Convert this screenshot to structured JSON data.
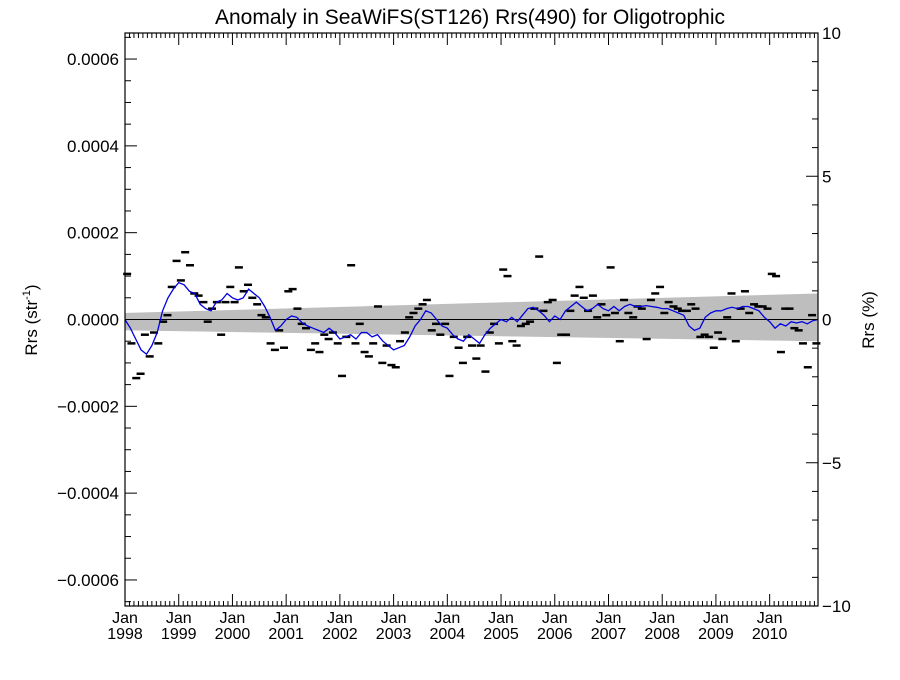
{
  "chart_data": {
    "type": "scatter",
    "title": "Anomaly in SeaWiFS(ST126) Rrs(490) for Oligotrophic",
    "ylabel_left": "Rrs (str",
    "ylabel_left_sup": "-1",
    "ylabel_left_close": ")",
    "ylabel_right": "Rrs (%)",
    "xlim": [
      1998.0,
      2010.9
    ],
    "ylim_left": [
      -0.00066,
      0.00066
    ],
    "ylim_right": [
      -10,
      10
    ],
    "yticks_left": [
      "−0.0006",
      "−0.0004",
      "−0.0002",
      "0.0000",
      "0.0002",
      "0.0004",
      "0.0006"
    ],
    "yticks_left_values": [
      -0.0006,
      -0.0004,
      -0.0002,
      0.0,
      0.0002,
      0.0004,
      0.0006
    ],
    "yticks_right": [
      "−10",
      "−5",
      "0",
      "5",
      "10"
    ],
    "yticks_right_values": [
      -10,
      -5,
      0,
      5,
      10
    ],
    "xticks": [
      {
        "year": 1998,
        "month": "Jan",
        "label": "1998"
      },
      {
        "year": 1999,
        "month": "Jan",
        "label": "1999"
      },
      {
        "year": 2000,
        "month": "Jan",
        "label": "2000"
      },
      {
        "year": 2001,
        "month": "Jan",
        "label": "2001"
      },
      {
        "year": 2002,
        "month": "Jan",
        "label": "2002"
      },
      {
        "year": 2003,
        "month": "Jan",
        "label": "2003"
      },
      {
        "year": 2004,
        "month": "Jan",
        "label": "2004"
      },
      {
        "year": 2005,
        "month": "Jan",
        "label": "2005"
      },
      {
        "year": 2006,
        "month": "Jan",
        "label": "2006"
      },
      {
        "year": 2007,
        "month": "Jan",
        "label": "2007"
      },
      {
        "year": 2008,
        "month": "Jan",
        "label": "2008"
      },
      {
        "year": 2009,
        "month": "Jan",
        "label": "2009"
      },
      {
        "year": 2010,
        "month": "Jan",
        "label": "2010"
      }
    ],
    "monthly_anomaly": {
      "marker": "dash",
      "color": "#000000",
      "x": [
        1998.04,
        1998.12,
        1998.21,
        1998.29,
        1998.37,
        1998.46,
        1998.54,
        1998.62,
        1998.71,
        1998.79,
        1998.87,
        1998.96,
        1999.04,
        1999.12,
        1999.21,
        1999.29,
        1999.37,
        1999.46,
        1999.54,
        1999.62,
        1999.71,
        1999.79,
        1999.87,
        1999.96,
        2000.04,
        2000.12,
        2000.21,
        2000.29,
        2000.37,
        2000.46,
        2000.54,
        2000.62,
        2000.71,
        2000.79,
        2000.87,
        2000.96,
        2001.04,
        2001.12,
        2001.21,
        2001.29,
        2001.37,
        2001.46,
        2001.54,
        2001.62,
        2001.71,
        2001.79,
        2001.87,
        2001.96,
        2002.04,
        2002.12,
        2002.21,
        2002.29,
        2002.37,
        2002.46,
        2002.54,
        2002.62,
        2002.71,
        2002.79,
        2002.87,
        2002.96,
        2003.04,
        2003.12,
        2003.21,
        2003.29,
        2003.37,
        2003.46,
        2003.54,
        2003.62,
        2003.71,
        2003.79,
        2003.87,
        2003.96,
        2004.04,
        2004.12,
        2004.21,
        2004.29,
        2004.37,
        2004.46,
        2004.54,
        2004.62,
        2004.71,
        2004.79,
        2004.87,
        2004.96,
        2005.04,
        2005.12,
        2005.21,
        2005.29,
        2005.37,
        2005.46,
        2005.54,
        2005.62,
        2005.71,
        2005.79,
        2005.87,
        2005.96,
        2006.04,
        2006.12,
        2006.21,
        2006.29,
        2006.37,
        2006.46,
        2006.54,
        2006.62,
        2006.71,
        2006.79,
        2006.87,
        2006.96,
        2007.04,
        2007.12,
        2007.21,
        2007.29,
        2007.37,
        2007.46,
        2007.54,
        2007.62,
        2007.71,
        2007.79,
        2007.87,
        2007.96,
        2008.04,
        2008.12,
        2008.21,
        2008.29,
        2008.37,
        2008.46,
        2008.54,
        2008.62,
        2008.71,
        2008.79,
        2008.87,
        2008.96,
        2009.04,
        2009.12,
        2009.21,
        2009.29,
        2009.37,
        2009.46,
        2009.54,
        2009.62,
        2009.71,
        2009.79,
        2009.87,
        2009.96,
        2010.04,
        2010.12,
        2010.21,
        2010.29,
        2010.37,
        2010.46,
        2010.54,
        2010.62,
        2010.71,
        2010.79,
        2010.87
      ],
      "y": [
        0.000105,
        -5.5e-05,
        -0.000135,
        -0.000125,
        -3.5e-05,
        -8.5e-05,
        -3e-05,
        -5.5e-05,
        -5e-06,
        1e-05,
        7.5e-05,
        0.000135,
        9e-05,
        0.000155,
        0.000125,
        6e-05,
        5.5e-05,
        4e-05,
        -5e-06,
        2.5e-05,
        4e-05,
        -3.5e-05,
        4e-05,
        7.5e-05,
        4e-05,
        0.00012,
        6.5e-05,
        8e-05,
        5e-05,
        3.5e-05,
        1e-05,
        5e-06,
        -5.5e-05,
        -7e-05,
        -2.5e-05,
        -6.5e-05,
        6.5e-05,
        7e-05,
        2.5e-05,
        -1e-05,
        -2e-05,
        -7e-05,
        -5.5e-05,
        -7.5e-05,
        -3.5e-05,
        -4.5e-05,
        -3e-05,
        -5.5e-05,
        -0.00013,
        -4e-05,
        0.000125,
        -5.5e-05,
        -1e-05,
        -7.5e-05,
        -8.5e-05,
        -5.5e-05,
        3e-05,
        -0.0001,
        -6e-05,
        -0.000105,
        -0.00011,
        -5e-05,
        -3e-05,
        5e-06,
        1.5e-05,
        2.5e-05,
        3.5e-05,
        4.5e-05,
        -2.5e-05,
        -1e-05,
        -3.5e-05,
        -1e-05,
        -0.00013,
        -4e-05,
        -6.5e-05,
        -0.0001,
        -4e-05,
        -6e-05,
        -9e-05,
        -6e-05,
        -0.00012,
        -3e-05,
        -1e-05,
        -5.5e-05,
        0.000115,
        0.0001,
        -5e-05,
        -6e-05,
        -1.5e-05,
        -1e-05,
        -5e-06,
        2.5e-05,
        0.000145,
        2e-05,
        4e-05,
        4.5e-05,
        -0.0001,
        -3.5e-05,
        -3.5e-05,
        2e-05,
        5.5e-05,
        7.5e-05,
        5e-05,
        2e-05,
        5.5e-05,
        5e-06,
        3.5e-05,
        1e-05,
        0.00012,
        1.5e-05,
        -5e-05,
        4.5e-05,
        1.5e-05,
        5e-06,
        3e-05,
        2.5e-05,
        -4.5e-05,
        4.5e-05,
        6e-05,
        7.5e-05,
        1.5e-05,
        4e-05,
        3e-05,
        2.5e-05,
        2e-05,
        2e-05,
        3.5e-05,
        2.5e-05,
        -4e-05,
        -3.5e-05,
        -4e-05,
        -6.5e-05,
        -3e-05,
        -4.5e-05,
        5e-06,
        6e-05,
        -5e-05,
        2.5e-05,
        6.5e-05,
        1.5e-05,
        3.5e-05,
        3e-05,
        3e-05,
        2.5e-05,
        0.000105,
        0.0001,
        -7.5e-05,
        2.5e-05,
        2.5e-05,
        -2e-05,
        -2.5e-05,
        -5.5e-05,
        -0.00011,
        1e-05,
        -5.5e-05
      ]
    },
    "running_mean": {
      "color": "#0000e0",
      "x": [
        1998.0,
        1998.1,
        1998.2,
        1998.3,
        1998.4,
        1998.5,
        1998.6,
        1998.7,
        1998.8,
        1998.9,
        1999.0,
        1999.1,
        1999.2,
        1999.3,
        1999.4,
        1999.5,
        1999.6,
        1999.7,
        1999.8,
        1999.9,
        2000.0,
        2000.1,
        2000.2,
        2000.3,
        2000.4,
        2000.5,
        2000.6,
        2000.7,
        2000.8,
        2000.9,
        2001.0,
        2001.1,
        2001.2,
        2001.3,
        2001.4,
        2001.5,
        2001.6,
        2001.7,
        2001.8,
        2001.9,
        2002.0,
        2002.1,
        2002.2,
        2002.3,
        2002.4,
        2002.5,
        2002.6,
        2002.7,
        2002.8,
        2002.9,
        2003.0,
        2003.1,
        2003.2,
        2003.3,
        2003.4,
        2003.5,
        2003.6,
        2003.7,
        2003.8,
        2003.9,
        2004.0,
        2004.1,
        2004.2,
        2004.3,
        2004.4,
        2004.5,
        2004.6,
        2004.7,
        2004.8,
        2004.9,
        2005.0,
        2005.1,
        2005.2,
        2005.3,
        2005.4,
        2005.5,
        2005.6,
        2005.7,
        2005.8,
        2005.9,
        2006.0,
        2006.1,
        2006.2,
        2006.3,
        2006.4,
        2006.5,
        2006.6,
        2006.7,
        2006.8,
        2006.9,
        2007.0,
        2007.1,
        2007.2,
        2007.3,
        2007.4,
        2007.5,
        2007.6,
        2007.7,
        2007.8,
        2007.9,
        2008.0,
        2008.1,
        2008.2,
        2008.3,
        2008.4,
        2008.5,
        2008.6,
        2008.7,
        2008.8,
        2008.9,
        2009.0,
        2009.1,
        2009.2,
        2009.3,
        2009.4,
        2009.5,
        2009.6,
        2009.7,
        2009.8,
        2009.9,
        2010.0,
        2010.1,
        2010.2,
        2010.3,
        2010.4,
        2010.5,
        2010.6,
        2010.7,
        2010.8,
        2010.9
      ],
      "y": [
        0.0,
        -2e-05,
        -4.5e-05,
        -7e-05,
        -8e-05,
        -6e-05,
        -3e-05,
        2e-05,
        5e-05,
        7e-05,
        8.5e-05,
        8e-05,
        6.5e-05,
        6e-05,
        3.5e-05,
        2.5e-05,
        2e-05,
        4e-05,
        4.5e-05,
        6e-05,
        5e-05,
        4.5e-05,
        5e-05,
        7e-05,
        6e-05,
        5e-05,
        3e-05,
        5e-06,
        -2.5e-05,
        -1.5e-05,
        0.0,
        8e-06,
        5e-06,
        -8e-06,
        -1.5e-05,
        -2e-05,
        -2.5e-05,
        -3e-05,
        -2e-05,
        -3e-05,
        -4.5e-05,
        -4e-05,
        -3.5e-05,
        -4.5e-05,
        -3e-05,
        -3e-05,
        -4e-05,
        -3.5e-05,
        -5e-05,
        -6e-05,
        -7e-05,
        -6.5e-05,
        -6e-05,
        -4e-05,
        -1.5e-05,
        0.0,
        2e-05,
        1.5e-05,
        0.0,
        -1.5e-05,
        -2e-05,
        -3.5e-05,
        -4.5e-05,
        -5e-05,
        -3.5e-05,
        -4.5e-05,
        -5.5e-05,
        -3.5e-05,
        -2e-05,
        -1e-05,
        0.0,
        -5e-06,
        5e-06,
        -5e-06,
        1e-05,
        2.5e-05,
        2.8e-05,
        2e-05,
        1e-05,
        -5e-06,
        8e-06,
        0.0,
        2e-05,
        3e-05,
        4e-05,
        3e-05,
        2e-05,
        2.5e-05,
        3.5e-05,
        2.5e-05,
        2e-05,
        3e-05,
        2e-05,
        3e-05,
        3.5e-05,
        3e-05,
        3e-05,
        3.2e-05,
        3e-05,
        2.8e-05,
        2.5e-05,
        2.5e-05,
        2e-05,
        1.5e-05,
        1e-05,
        -1.5e-05,
        -2.5e-05,
        -2e-05,
        5e-06,
        1.5e-05,
        2e-05,
        2e-05,
        2.5e-05,
        2.8e-05,
        2.5e-05,
        3e-05,
        3e-05,
        2.5e-05,
        2e-05,
        5e-06,
        -5e-06,
        -2e-05,
        -1e-05,
        -1.5e-05,
        -5e-06,
        -8e-06,
        -5e-06,
        -1e-05,
        -3e-06,
        0.0
      ]
    },
    "trend_band": {
      "color": "#bebebe",
      "x": [
        1998.0,
        2010.9
      ],
      "upper": [
        1.5e-05,
        6e-05
      ],
      "lower": [
        -2.5e-05,
        -5e-05
      ]
    },
    "trend_line": {
      "color": "#000000",
      "x": [
        1998.0,
        2010.9
      ],
      "y": [
        0.0,
        0.0
      ]
    },
    "zero_line": {
      "color": "#000000",
      "y": 0.0
    }
  }
}
